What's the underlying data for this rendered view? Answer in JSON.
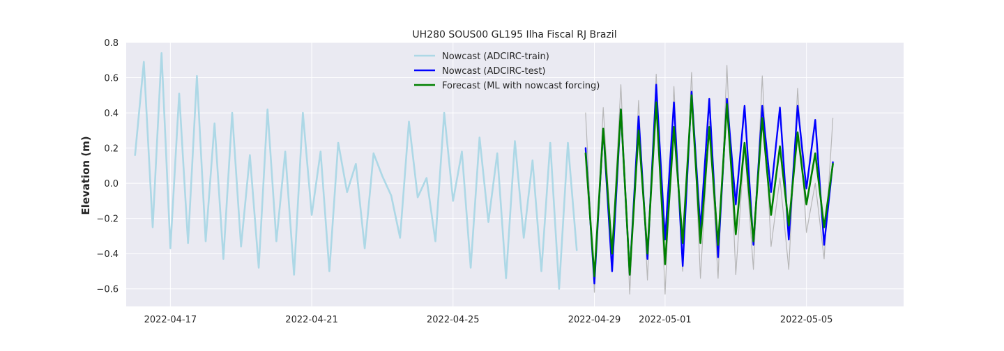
{
  "chart_data": {
    "type": "line",
    "title": "UH280 SOUS00 GL195 Ilha Fiscal RJ Brazil",
    "xlabel": "",
    "ylabel": "Elevation (m)",
    "xlim": [
      "2022-04-15T18:00",
      "2022-05-07T18:00"
    ],
    "ylim": [
      -0.7,
      0.8
    ],
    "grid": true,
    "legend_position": "top-center",
    "x_ticks": [
      "2022-04-17",
      "2022-04-21",
      "2022-04-25",
      "2022-04-29",
      "2022-05-01",
      "2022-05-05"
    ],
    "y_ticks": [
      -0.6,
      -0.4,
      -0.2,
      0.0,
      0.2,
      0.4,
      0.6,
      0.8
    ],
    "y_tick_labels": [
      "−0.6",
      "−0.4",
      "−0.2",
      "0.0",
      "0.2",
      "0.4",
      "0.6",
      "0.8"
    ],
    "colors": {
      "train": "#add8e6",
      "test": "#0000ff",
      "forecast": "#008000",
      "observed": "#b0b0b0",
      "plot_bg": "#eaeaf2",
      "grid": "#ffffff"
    },
    "series": [
      {
        "key": "observed",
        "x": [
          "2022-04-28T18:00",
          "2022-04-29T00:00",
          "2022-04-29T06:00",
          "2022-04-29T12:00",
          "2022-04-29T18:00",
          "2022-04-30T00:00",
          "2022-04-30T06:00",
          "2022-04-30T12:00",
          "2022-04-30T18:00",
          "2022-05-01T00:00",
          "2022-05-01T06:00",
          "2022-05-01T12:00",
          "2022-05-01T18:00",
          "2022-05-02T00:00",
          "2022-05-02T06:00",
          "2022-05-02T12:00",
          "2022-05-02T18:00",
          "2022-05-03T00:00",
          "2022-05-03T06:00",
          "2022-05-03T12:00",
          "2022-05-03T18:00",
          "2022-05-04T00:00",
          "2022-05-04T06:00",
          "2022-05-04T12:00",
          "2022-05-04T18:00",
          "2022-05-05T00:00",
          "2022-05-05T06:00",
          "2022-05-05T12:00",
          "2022-05-05T18:00"
        ],
        "values": [
          0.4,
          -0.62,
          0.43,
          -0.4,
          0.56,
          -0.63,
          0.47,
          -0.55,
          0.62,
          -0.63,
          0.55,
          -0.5,
          0.63,
          -0.54,
          0.35,
          -0.54,
          0.67,
          -0.52,
          0.22,
          -0.49,
          0.61,
          -0.36,
          0.03,
          -0.49,
          0.54,
          -0.28,
          0.0,
          -0.43,
          0.37
        ]
      },
      {
        "name": "Nowcast (ADCIRC-train)",
        "key": "train",
        "x": [
          "2022-04-16T00:00",
          "2022-04-16T06:00",
          "2022-04-16T12:00",
          "2022-04-16T18:00",
          "2022-04-17T00:00",
          "2022-04-17T06:00",
          "2022-04-17T12:00",
          "2022-04-17T18:00",
          "2022-04-18T00:00",
          "2022-04-18T06:00",
          "2022-04-18T12:00",
          "2022-04-18T18:00",
          "2022-04-19T00:00",
          "2022-04-19T06:00",
          "2022-04-19T12:00",
          "2022-04-19T18:00",
          "2022-04-20T00:00",
          "2022-04-20T06:00",
          "2022-04-20T12:00",
          "2022-04-20T18:00",
          "2022-04-21T00:00",
          "2022-04-21T06:00",
          "2022-04-21T12:00",
          "2022-04-21T18:00",
          "2022-04-22T00:00",
          "2022-04-22T06:00",
          "2022-04-22T12:00",
          "2022-04-22T18:00",
          "2022-04-23T00:00",
          "2022-04-23T06:00",
          "2022-04-23T12:00",
          "2022-04-23T18:00",
          "2022-04-24T00:00",
          "2022-04-24T06:00",
          "2022-04-24T12:00",
          "2022-04-24T18:00",
          "2022-04-25T00:00",
          "2022-04-25T06:00",
          "2022-04-25T12:00",
          "2022-04-25T18:00",
          "2022-04-26T00:00",
          "2022-04-26T06:00",
          "2022-04-26T12:00",
          "2022-04-26T18:00",
          "2022-04-27T00:00",
          "2022-04-27T06:00",
          "2022-04-27T12:00",
          "2022-04-27T18:00",
          "2022-04-28T00:00",
          "2022-04-28T06:00",
          "2022-04-28T12:00"
        ],
        "values": [
          0.16,
          0.69,
          -0.25,
          0.74,
          -0.37,
          0.51,
          -0.34,
          0.61,
          -0.33,
          0.34,
          -0.43,
          0.4,
          -0.36,
          0.16,
          -0.48,
          0.42,
          -0.33,
          0.18,
          -0.52,
          0.4,
          -0.18,
          0.18,
          -0.5,
          0.23,
          -0.05,
          0.11,
          -0.37,
          0.17,
          0.04,
          -0.07,
          -0.31,
          0.35,
          -0.08,
          0.03,
          -0.33,
          0.4,
          -0.1,
          0.18,
          -0.48,
          0.26,
          -0.22,
          0.17,
          -0.54,
          0.24,
          -0.31,
          0.13,
          -0.5,
          0.23,
          -0.6,
          0.23,
          -0.38
        ]
      },
      {
        "name": "Nowcast (ADCIRC-test)",
        "key": "test",
        "x": [
          "2022-04-28T18:00",
          "2022-04-29T00:00",
          "2022-04-29T06:00",
          "2022-04-29T12:00",
          "2022-04-29T18:00",
          "2022-04-30T00:00",
          "2022-04-30T06:00",
          "2022-04-30T12:00",
          "2022-04-30T18:00",
          "2022-05-01T00:00",
          "2022-05-01T06:00",
          "2022-05-01T12:00",
          "2022-05-01T18:00",
          "2022-05-02T00:00",
          "2022-05-02T06:00",
          "2022-05-02T12:00",
          "2022-05-02T18:00",
          "2022-05-03T00:00",
          "2022-05-03T06:00",
          "2022-05-03T12:00",
          "2022-05-03T18:00",
          "2022-05-04T00:00",
          "2022-05-04T06:00",
          "2022-05-04T12:00",
          "2022-05-04T18:00",
          "2022-05-05T00:00",
          "2022-05-05T06:00",
          "2022-05-05T12:00",
          "2022-05-05T18:00"
        ],
        "values": [
          0.2,
          -0.57,
          0.31,
          -0.5,
          0.42,
          -0.52,
          0.38,
          -0.43,
          0.56,
          -0.32,
          0.46,
          -0.47,
          0.52,
          -0.26,
          0.48,
          -0.42,
          0.48,
          -0.12,
          0.44,
          -0.35,
          0.44,
          -0.05,
          0.43,
          -0.32,
          0.44,
          -0.03,
          0.36,
          -0.35,
          0.12
        ]
      },
      {
        "name": "Forecast (ML with nowcast forcing)",
        "key": "forecast",
        "x": [
          "2022-04-28T18:00",
          "2022-04-29T00:00",
          "2022-04-29T06:00",
          "2022-04-29T12:00",
          "2022-04-29T18:00",
          "2022-04-30T00:00",
          "2022-04-30T06:00",
          "2022-04-30T12:00",
          "2022-04-30T18:00",
          "2022-05-01T00:00",
          "2022-05-01T06:00",
          "2022-05-01T12:00",
          "2022-05-01T18:00",
          "2022-05-02T00:00",
          "2022-05-02T06:00",
          "2022-05-02T12:00",
          "2022-05-02T18:00",
          "2022-05-03T00:00",
          "2022-05-03T06:00",
          "2022-05-03T12:00",
          "2022-05-03T18:00",
          "2022-05-04T00:00",
          "2022-05-04T06:00",
          "2022-05-04T12:00",
          "2022-05-04T18:00",
          "2022-05-05T00:00",
          "2022-05-05T06:00",
          "2022-05-05T12:00",
          "2022-05-05T18:00"
        ],
        "values": [
          0.17,
          -0.53,
          0.31,
          -0.4,
          0.42,
          -0.52,
          0.3,
          -0.4,
          0.46,
          -0.46,
          0.32,
          -0.34,
          0.5,
          -0.34,
          0.32,
          -0.35,
          0.45,
          -0.29,
          0.23,
          -0.33,
          0.37,
          -0.18,
          0.21,
          -0.24,
          0.29,
          -0.12,
          0.17,
          -0.25,
          0.11
        ]
      }
    ]
  }
}
